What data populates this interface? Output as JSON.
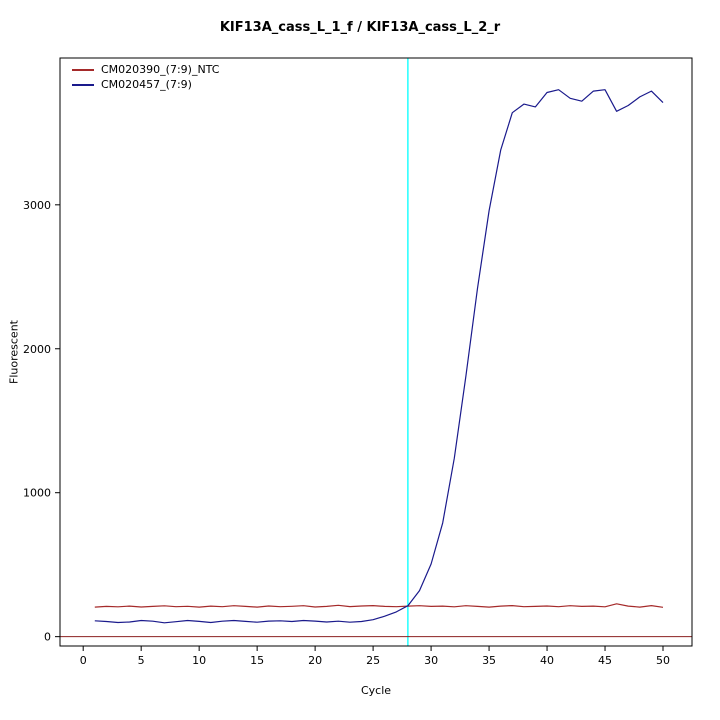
{
  "page": {
    "background_color": "#ffffff"
  },
  "chart_data": {
    "type": "line",
    "title": "KIF13A_cass_L_1_f / KIF13A_cass_L_2_r",
    "xlabel": "Cycle",
    "ylabel": "Fluorescent",
    "xlim": [
      -2,
      52.5
    ],
    "ylim": [
      -65,
      4020
    ],
    "x_ticks": [
      0,
      5,
      10,
      15,
      20,
      25,
      30,
      35,
      40,
      45,
      50
    ],
    "y_ticks": [
      0,
      1000,
      2000,
      3000
    ],
    "grid": false,
    "legend_position": "top-left",
    "frame_color": "#000000",
    "x": [
      1,
      2,
      3,
      4,
      5,
      6,
      7,
      8,
      9,
      10,
      11,
      12,
      13,
      14,
      15,
      16,
      17,
      18,
      19,
      20,
      21,
      22,
      23,
      24,
      25,
      26,
      27,
      28,
      29,
      30,
      31,
      32,
      33,
      34,
      35,
      36,
      37,
      38,
      39,
      40,
      41,
      42,
      43,
      44,
      45,
      46,
      47,
      48,
      49,
      50
    ],
    "series": [
      {
        "name": "CM020390_(7:9)_NTC",
        "color": "#A52A2A",
        "values": [
          205,
          210,
          207,
          212,
          206,
          210,
          214,
          208,
          211,
          205,
          212,
          208,
          215,
          210,
          205,
          213,
          208,
          211,
          215,
          206,
          210,
          218,
          209,
          213,
          216,
          210,
          208,
          212,
          215,
          210,
          212,
          207,
          215,
          210,
          205,
          212,
          216,
          208,
          210,
          213,
          208,
          215,
          210,
          212,
          207,
          228,
          212,
          205,
          216,
          204
        ]
      },
      {
        "name": "CM020457_(7:9)",
        "color": "#1A1A8C",
        "values": [
          110,
          105,
          98,
          102,
          112,
          107,
          96,
          104,
          112,
          106,
          98,
          107,
          112,
          106,
          100,
          108,
          110,
          105,
          112,
          108,
          102,
          107,
          100,
          105,
          118,
          142,
          172,
          215,
          320,
          505,
          790,
          1240,
          1810,
          2420,
          2960,
          3380,
          3640,
          3700,
          3680,
          3780,
          3800,
          3740,
          3720,
          3790,
          3800,
          3650,
          3690,
          3750,
          3790,
          3710
        ]
      }
    ],
    "threshold_line": {
      "axis": "x",
      "value": 28,
      "color": "#00FFFF"
    },
    "baseline": {
      "axis": "y",
      "value": 0,
      "color": "#8B2020"
    }
  }
}
